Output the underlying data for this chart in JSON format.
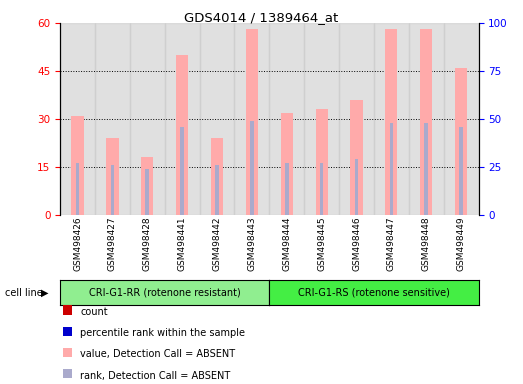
{
  "title": "GDS4014 / 1389464_at",
  "samples": [
    "GSM498426",
    "GSM498427",
    "GSM498428",
    "GSM498441",
    "GSM498442",
    "GSM498443",
    "GSM498444",
    "GSM498445",
    "GSM498446",
    "GSM498447",
    "GSM498448",
    "GSM498449"
  ],
  "pink_values": [
    31,
    24,
    18,
    50,
    24,
    58,
    32,
    33,
    36,
    58,
    58,
    46
  ],
  "blue_values": [
    27,
    26,
    24,
    46,
    26,
    49,
    27,
    27,
    29,
    48,
    48,
    46
  ],
  "group1_label": "CRI-G1-RR (rotenone resistant)",
  "group2_label": "CRI-G1-RS (rotenone sensitive)",
  "group1_count": 6,
  "group2_count": 6,
  "cell_line_label": "cell line",
  "ylim_left": [
    0,
    60
  ],
  "ylim_right": [
    0,
    100
  ],
  "yticks_left": [
    0,
    15,
    30,
    45,
    60
  ],
  "yticks_right": [
    0,
    25,
    50,
    75,
    100
  ],
  "bar_color_pink": "#FFAAAA",
  "bar_color_blue": "#AAAACC",
  "col_bg_color": "#CCCCCC",
  "group1_bg": "#90EE90",
  "group2_bg": "#44EE44",
  "legend_items": [
    {
      "color": "#CC0000",
      "label": "count"
    },
    {
      "color": "#0000CC",
      "label": "percentile rank within the sample"
    },
    {
      "color": "#FFAAAA",
      "label": "value, Detection Call = ABSENT"
    },
    {
      "color": "#AAAACC",
      "label": "rank, Detection Call = ABSENT"
    }
  ]
}
